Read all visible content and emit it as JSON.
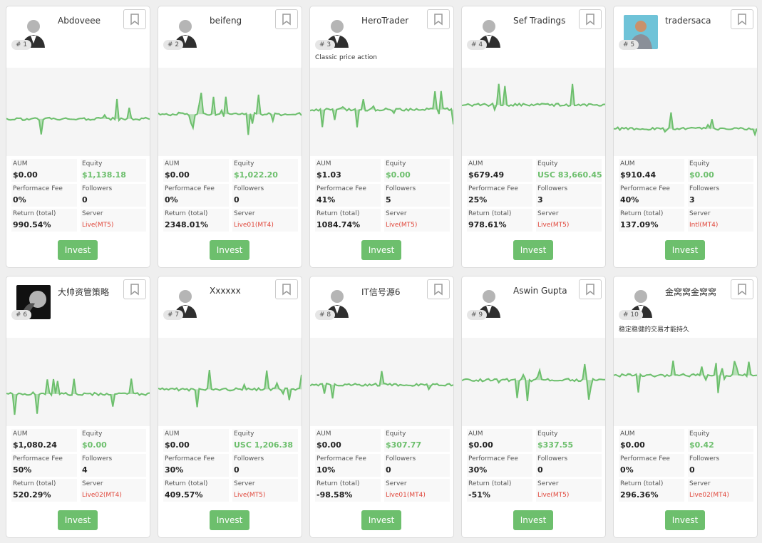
{
  "labels": {
    "aum": "AUM",
    "equity": "Equity",
    "fee": "Performace Fee",
    "followers": "Followers",
    "return": "Return (total)",
    "server": "Server",
    "invest": "Invest"
  },
  "cards": [
    {
      "rank": "# 1",
      "name": "Abdoveee",
      "aum": "$0.00",
      "equity": "$1,138.18",
      "fee": "0%",
      "followers": "0",
      "return": "990.54%",
      "server": "Live(MT5)"
    },
    {
      "rank": "# 2",
      "name": "beifeng",
      "aum": "$0.00",
      "equity": "$1,022.20",
      "fee": "0%",
      "followers": "0",
      "return": "2348.01%",
      "server": "Live01(MT4)"
    },
    {
      "rank": "# 3",
      "name": "HeroTrader",
      "description": "Classic price action",
      "aum": "$1.03",
      "equity": "$0.00",
      "fee": "41%",
      "followers": "5",
      "return": "1084.74%",
      "server": "Live(MT5)"
    },
    {
      "rank": "# 4",
      "name": "Sef Tradings",
      "aum": "$679.49",
      "equity": "USC 83,660.45",
      "fee": "25%",
      "followers": "3",
      "return": "978.61%",
      "server": "Live(MT5)"
    },
    {
      "rank": "# 5",
      "name": "tradersaca",
      "aum": "$910.44",
      "equity": "$0.00",
      "fee": "40%",
      "followers": "3",
      "return": "137.09%",
      "server": "Intl(MT4)"
    },
    {
      "rank": "# 6",
      "name": "大帅资管策略",
      "aum": "$1,080.24",
      "equity": "$0.00",
      "fee": "50%",
      "followers": "4",
      "return": "520.29%",
      "server": "Live02(MT4)"
    },
    {
      "rank": "# 7",
      "name": "Xxxxxx",
      "aum": "$0.00",
      "equity": "USC 1,206.38",
      "fee": "30%",
      "followers": "0",
      "return": "409.57%",
      "server": "Live(MT5)"
    },
    {
      "rank": "# 8",
      "name": "IT信号源6",
      "aum": "$0.00",
      "equity": "$307.77",
      "fee": "10%",
      "followers": "0",
      "return": "-98.58%",
      "server": "Live01(MT4)"
    },
    {
      "rank": "# 9",
      "name": "Aswin Gupta",
      "aum": "$0.00",
      "equity": "$337.55",
      "fee": "30%",
      "followers": "0",
      "return": "-51%",
      "server": "Live(MT5)"
    },
    {
      "rank": "# 10",
      "name": "金窝窝金窝窝",
      "description": "稳定稳健的交易才能持久",
      "aum": "$0.00",
      "equity": "$0.42",
      "fee": "0%",
      "followers": "0",
      "return": "296.36%",
      "server": "Live02(MT4)"
    }
  ]
}
